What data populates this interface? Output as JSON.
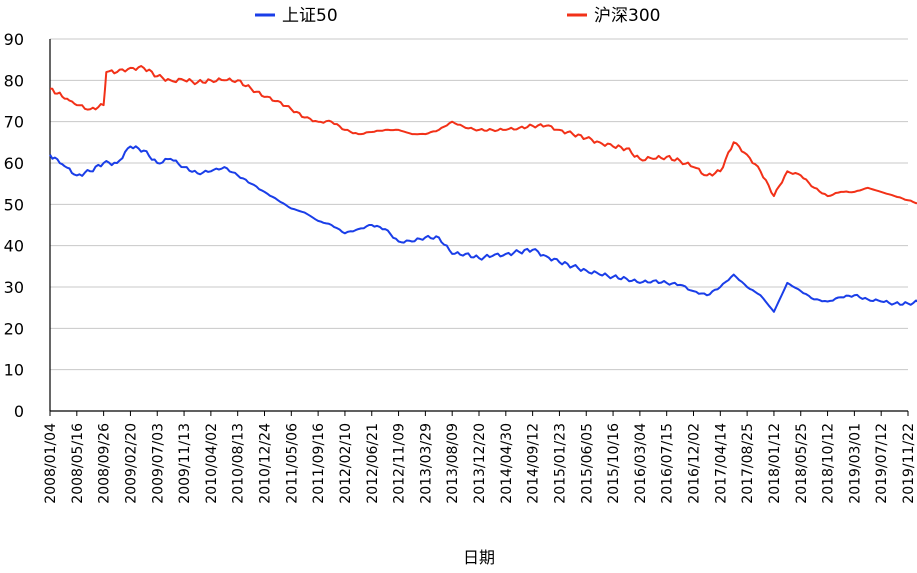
{
  "chart_data": {
    "type": "line",
    "title": "",
    "xlabel": "日期",
    "ylabel": "",
    "ylim": [
      0,
      90
    ],
    "yticks": [
      0,
      10,
      20,
      30,
      40,
      50,
      60,
      70,
      80,
      90
    ],
    "grid": true,
    "legend_position": "top",
    "x_ticks": [
      "2008/01/04",
      "2008/05/16",
      "2008/09/26",
      "2009/02/20",
      "2009/07/03",
      "2009/11/13",
      "2010/04/02",
      "2010/08/13",
      "2010/12/24",
      "2011/05/06",
      "2011/09/16",
      "2012/02/10",
      "2012/06/21",
      "2012/11/09",
      "2013/03/29",
      "2013/08/09",
      "2013/12/20",
      "2014/04/30",
      "2014/09/12",
      "2015/01/23",
      "2015/06/05",
      "2015/10/16",
      "2016/03/04",
      "2016/07/15",
      "2016/12/02",
      "2017/04/14",
      "2017/08/25",
      "2018/01/12",
      "2018/05/25",
      "2018/10/12",
      "2019/03/01",
      "2019/07/12",
      "2019/11/22"
    ],
    "series": [
      {
        "name": "上证50",
        "color": "#1a3ee8",
        "points": [
          [
            0,
            62
          ],
          [
            1,
            57
          ],
          [
            1.5,
            58
          ],
          [
            2,
            60
          ],
          [
            2.5,
            60
          ],
          [
            3,
            64
          ],
          [
            3.5,
            63
          ],
          [
            4,
            60
          ],
          [
            4.5,
            61
          ],
          [
            5,
            59
          ],
          [
            5.5,
            57.5
          ],
          [
            6,
            58
          ],
          [
            6.5,
            59
          ],
          [
            7,
            57
          ],
          [
            7.5,
            55
          ],
          [
            8,
            53
          ],
          [
            8.5,
            51
          ],
          [
            9,
            49
          ],
          [
            9.5,
            48
          ],
          [
            10,
            46
          ],
          [
            10.5,
            45
          ],
          [
            11,
            43
          ],
          [
            11.5,
            44
          ],
          [
            12,
            45
          ],
          [
            12.5,
            44
          ],
          [
            13,
            41
          ],
          [
            13.5,
            41
          ],
          [
            14,
            42
          ],
          [
            14.5,
            42
          ],
          [
            15,
            38
          ],
          [
            15.5,
            38
          ],
          [
            16,
            37
          ],
          [
            16.5,
            37.5
          ],
          [
            17,
            38
          ],
          [
            17.5,
            38.5
          ],
          [
            18,
            39
          ],
          [
            18.5,
            37.5
          ],
          [
            19,
            36
          ],
          [
            19.5,
            35
          ],
          [
            20,
            34
          ],
          [
            20.5,
            33
          ],
          [
            21,
            32.5
          ],
          [
            21.5,
            32
          ],
          [
            22,
            31
          ],
          [
            22.5,
            31.5
          ],
          [
            23,
            31
          ],
          [
            23.5,
            30.5
          ],
          [
            24,
            29
          ],
          [
            24.5,
            28
          ],
          [
            25,
            30
          ],
          [
            25.5,
            33
          ],
          [
            26,
            30
          ],
          [
            26.5,
            28
          ],
          [
            27,
            24
          ],
          [
            27.5,
            31
          ],
          [
            28,
            29
          ],
          [
            28.5,
            27
          ],
          [
            29,
            26.5
          ],
          [
            29.5,
            27.5
          ],
          [
            30,
            28
          ],
          [
            30.5,
            27
          ],
          [
            31,
            26.5
          ],
          [
            31.5,
            26
          ],
          [
            32,
            26
          ],
          [
            32.5,
            26.5
          ],
          [
            33,
            25.5
          ],
          [
            33.5,
            26
          ],
          [
            34,
            26
          ],
          [
            34.5,
            26.5
          ],
          [
            35,
            27
          ],
          [
            35.5,
            28
          ],
          [
            36,
            28
          ],
          [
            36.5,
            28.5
          ],
          [
            37,
            29
          ],
          [
            37.5,
            30.5
          ],
          [
            38,
            29
          ],
          [
            38.5,
            29
          ],
          [
            39,
            30
          ],
          [
            39.5,
            31.5
          ],
          [
            40,
            33
          ],
          [
            40.5,
            34
          ],
          [
            41,
            35
          ],
          [
            41.5,
            32.5
          ],
          [
            42,
            33.5
          ],
          [
            42.5,
            34.5
          ],
          [
            43,
            34
          ],
          [
            43.5,
            33
          ],
          [
            44,
            33.5
          ],
          [
            44.5,
            33
          ]
        ]
      },
      {
        "name": "沪深300",
        "color": "#f23118",
        "points": [
          [
            0,
            78
          ],
          [
            1,
            74
          ],
          [
            1.5,
            73
          ],
          [
            2,
            74
          ],
          [
            2.1,
            82
          ],
          [
            2.5,
            82
          ],
          [
            3,
            83
          ],
          [
            3.5,
            83
          ],
          [
            4,
            81
          ],
          [
            4.5,
            80
          ],
          [
            5,
            80
          ],
          [
            5.5,
            79.5
          ],
          [
            6,
            80
          ],
          [
            6.5,
            80
          ],
          [
            7,
            80
          ],
          [
            7.5,
            78
          ],
          [
            8,
            76
          ],
          [
            8.5,
            75
          ],
          [
            9,
            73
          ],
          [
            9.5,
            71
          ],
          [
            10,
            70
          ],
          [
            10.5,
            70
          ],
          [
            11,
            68
          ],
          [
            11.5,
            67
          ],
          [
            12,
            67.5
          ],
          [
            12.5,
            68
          ],
          [
            13,
            68
          ],
          [
            13.5,
            67
          ],
          [
            14,
            67
          ],
          [
            14.5,
            68
          ],
          [
            15,
            70
          ],
          [
            15.5,
            68.5
          ],
          [
            16,
            68
          ],
          [
            16.5,
            68
          ],
          [
            17,
            68
          ],
          [
            17.5,
            68.5
          ],
          [
            18,
            69
          ],
          [
            18.5,
            69
          ],
          [
            19,
            68
          ],
          [
            19.5,
            67
          ],
          [
            20,
            66
          ],
          [
            20.5,
            65
          ],
          [
            21,
            64
          ],
          [
            21.5,
            63.5
          ],
          [
            22,
            61
          ],
          [
            22.5,
            61
          ],
          [
            23,
            61.5
          ],
          [
            23.5,
            60.5
          ],
          [
            24,
            59
          ],
          [
            24.5,
            57
          ],
          [
            25,
            58
          ],
          [
            25.5,
            65
          ],
          [
            26,
            62
          ],
          [
            26.5,
            58
          ],
          [
            27,
            52
          ],
          [
            27.5,
            58
          ],
          [
            28,
            57
          ],
          [
            28.5,
            54
          ],
          [
            29,
            52
          ],
          [
            29.5,
            53
          ],
          [
            30,
            53
          ],
          [
            30.5,
            54
          ],
          [
            31,
            53
          ],
          [
            31.5,
            52
          ],
          [
            32,
            51
          ],
          [
            32.5,
            50
          ],
          [
            33,
            50
          ],
          [
            33.5,
            50
          ],
          [
            34,
            49
          ],
          [
            34.5,
            49.5
          ],
          [
            35,
            52
          ],
          [
            35.5,
            54
          ],
          [
            36,
            54
          ],
          [
            36.5,
            54
          ],
          [
            37,
            55.5
          ],
          [
            37.5,
            57
          ],
          [
            38,
            58
          ],
          [
            38.5,
            56
          ],
          [
            39,
            56
          ],
          [
            39.5,
            57.5
          ],
          [
            40,
            59
          ],
          [
            40.5,
            60
          ],
          [
            41,
            60.5
          ],
          [
            41.5,
            59
          ],
          [
            42,
            59
          ],
          [
            42.5,
            60
          ],
          [
            43,
            61
          ],
          [
            43.5,
            60
          ],
          [
            44,
            60
          ],
          [
            44.5,
            59.5
          ]
        ]
      }
    ]
  }
}
